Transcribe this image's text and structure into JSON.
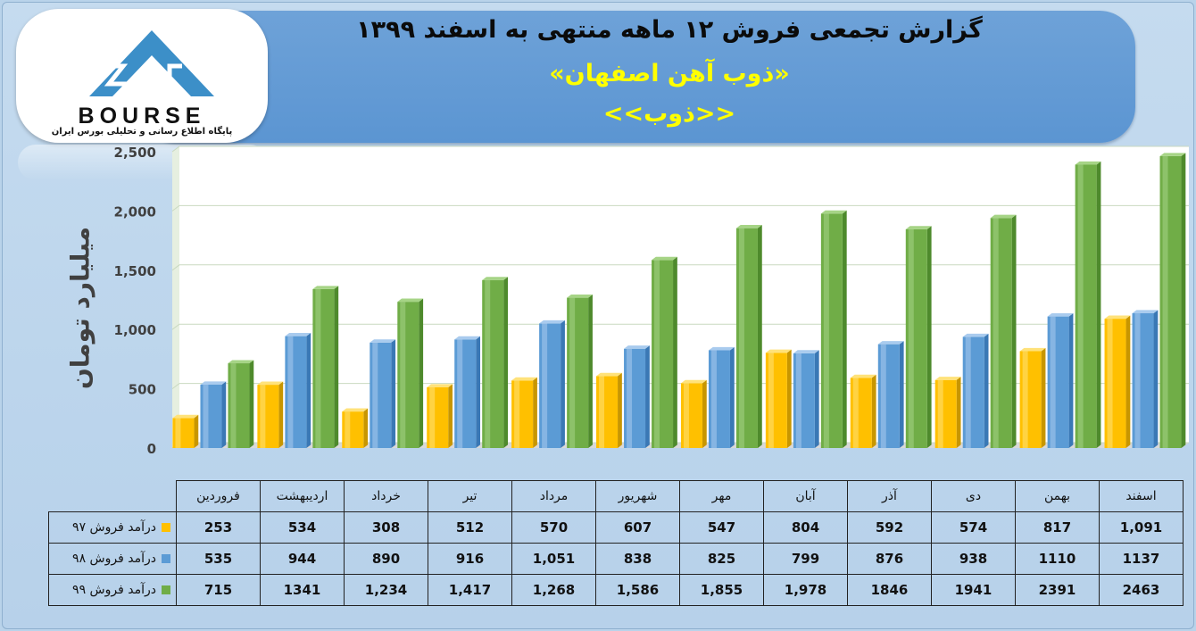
{
  "header": {
    "title_line1": "گزارش تجمعی فروش ۱۲ ماهه منتهی به اسفند ۱۳۹۹",
    "title_line2": "«ذوب آهن اصفهان»",
    "title_line3": "<<ذوب>>"
  },
  "logo": {
    "wordmark": "BOURSE",
    "subtitle": "پایگاه اطلاع رسانی و تحلیلی بورس ایران"
  },
  "colors": {
    "series97": "#ffc000",
    "series98": "#5b9bd5",
    "series99": "#70ad47"
  },
  "chart_data": {
    "type": "bar",
    "ylabel": "میلیارد تومان",
    "ylim": [
      0,
      2500
    ],
    "yticks": [
      0,
      500,
      1000,
      1500,
      2000,
      2500
    ],
    "ytick_labels": [
      "0",
      "500",
      "1,000",
      "1,500",
      "2,000",
      "2,500"
    ],
    "grid": true,
    "categories": [
      "فروردین",
      "اردیبهشت",
      "خرداد",
      "تیر",
      "مرداد",
      "شهریور",
      "مهر",
      "آبان",
      "آذر",
      "دی",
      "بهمن",
      "اسفند"
    ],
    "series": [
      {
        "name": "درآمد فروش ۹۷",
        "values": [
          253,
          534,
          308,
          512,
          570,
          607,
          547,
          804,
          592,
          574,
          817,
          1091
        ],
        "labels": [
          "253",
          "534",
          "308",
          "512",
          "570",
          "607",
          "547",
          "804",
          "592",
          "574",
          "817",
          "1,091"
        ]
      },
      {
        "name": "درآمد فروش ۹۸",
        "values": [
          535,
          944,
          890,
          916,
          1051,
          838,
          825,
          799,
          876,
          938,
          1110,
          1137
        ],
        "labels": [
          "535",
          "944",
          "890",
          "916",
          "1,051",
          "838",
          "825",
          "799",
          "876",
          "938",
          "1110",
          "1137"
        ]
      },
      {
        "name": "درآمد فروش ۹۹",
        "values": [
          715,
          1341,
          1234,
          1417,
          1268,
          1586,
          1855,
          1978,
          1846,
          1941,
          2391,
          2463
        ],
        "labels": [
          "715",
          "1341",
          "1,234",
          "1,417",
          "1,268",
          "1,586",
          "1,855",
          "1,978",
          "1846",
          "1941",
          "2391",
          "2463"
        ]
      }
    ]
  }
}
